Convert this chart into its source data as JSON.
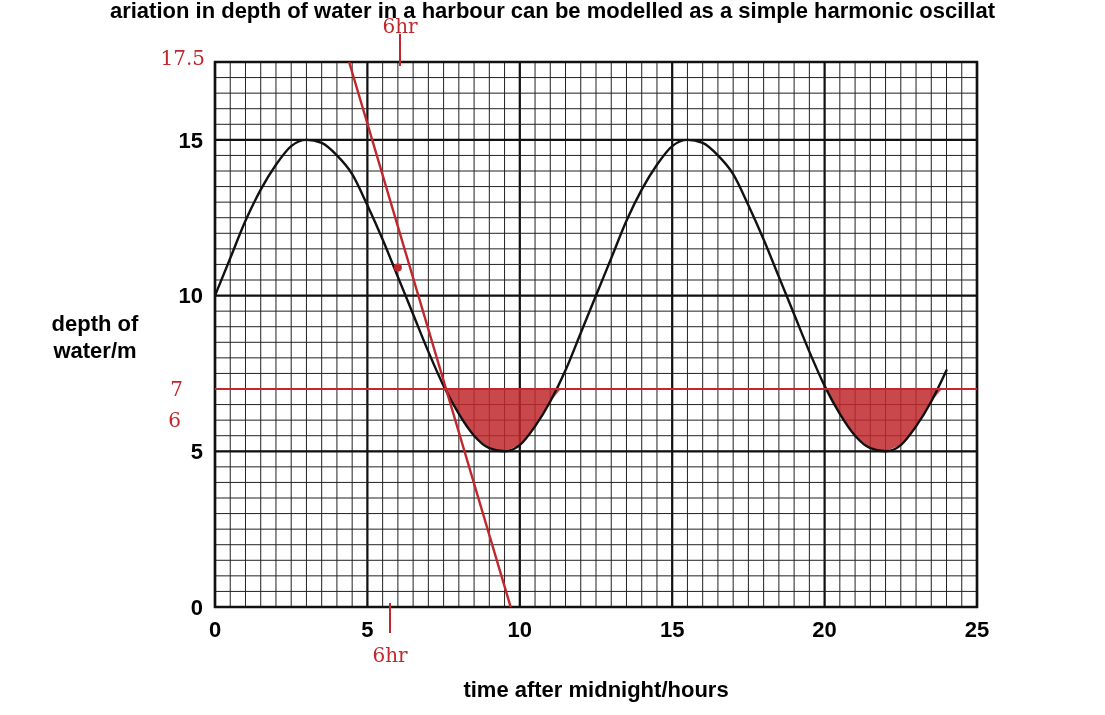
{
  "chart_data": {
    "type": "line",
    "title": "ariation in depth of water in a harbour can be modelled as a simple harmonic oscillat",
    "xlabel": "time after midnight/hours",
    "ylabel": "depth of water/m",
    "xlim": [
      0,
      25
    ],
    "ylim": [
      0,
      17.5
    ],
    "xticks": [
      0,
      5,
      10,
      15,
      20,
      25
    ],
    "yticks": [
      0,
      5,
      10,
      15
    ],
    "grid": true,
    "series": [
      {
        "type": "area",
        "color": "#c0282d",
        "x": [
          7.55,
          8,
          8.5,
          9,
          9.5,
          10,
          10.5,
          11,
          11.35
        ],
        "values": [
          7,
          6.2,
          5.5,
          5.1,
          5,
          5.2,
          5.8,
          6.6,
          7
        ]
      },
      {
        "type": "area",
        "color": "#c0282d",
        "x": [
          20.05,
          20.5,
          21,
          21.5,
          22,
          22.5,
          23,
          23.5,
          23.85
        ],
        "values": [
          7,
          6.2,
          5.5,
          5.1,
          5,
          5.2,
          5.8,
          6.6,
          7
        ]
      },
      {
        "color": "#111111",
        "x": [
          0,
          0.5,
          1,
          1.5,
          2,
          2.5,
          3,
          3.5,
          4,
          4.5,
          5,
          5.5,
          6,
          6.5,
          7,
          7.5,
          8,
          8.5,
          9,
          9.5,
          10,
          10.5,
          11,
          11.5,
          12,
          12.5,
          13,
          13.5,
          14,
          14.5,
          15,
          15.5,
          16,
          16.5,
          17,
          17.5,
          18,
          18.5,
          19,
          19.5,
          20,
          20.5,
          21,
          21.5,
          22,
          22.5,
          23,
          23.5,
          24
        ],
        "values": [
          10,
          11.2,
          12.4,
          13.4,
          14.2,
          14.8,
          15,
          14.9,
          14.5,
          13.9,
          12.9,
          11.8,
          10.6,
          9.4,
          8.2,
          7.1,
          6.2,
          5.5,
          5.1,
          5,
          5.2,
          5.8,
          6.6,
          7.6,
          8.8,
          10,
          11.2,
          12.4,
          13.4,
          14.2,
          14.8,
          15,
          14.9,
          14.5,
          13.9,
          12.9,
          11.8,
          10.6,
          9.4,
          8.2,
          7.1,
          6.2,
          5.5,
          5.1,
          5,
          5.2,
          5.8,
          6.6,
          7.6
        ]
      },
      {
        "type": "line",
        "color": "#c0282d",
        "x": [
          4.4,
          9.7
        ],
        "values": [
          17.5,
          0
        ]
      },
      {
        "type": "scatter",
        "color": "#c0282d",
        "marker": "circle",
        "x": [
          6
        ],
        "values": [
          10.9
        ]
      }
    ],
    "ref_lines": [
      {
        "axis": "y",
        "value": 7,
        "label": "7",
        "color": "#c0282d"
      }
    ],
    "annotations": [
      "17.5",
      "6",
      "6hr",
      "6hr"
    ]
  }
}
